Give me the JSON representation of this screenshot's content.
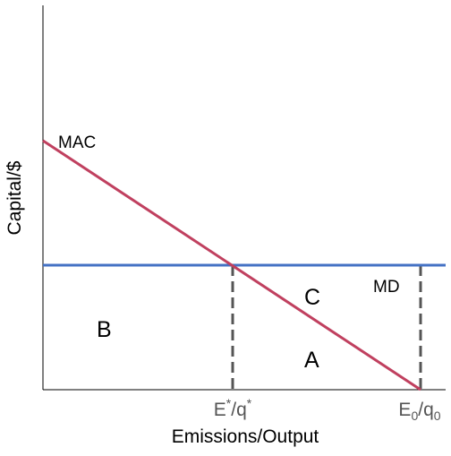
{
  "diagram": {
    "ylabel": "Capital/$",
    "xlabel": "Emissions/Output",
    "curves": {
      "mac": {
        "label": "MAC",
        "color": "#c0405f"
      },
      "md": {
        "label": "MD",
        "color": "#4472c4"
      }
    },
    "guide_color": "#555555",
    "regions": [
      "B",
      "C",
      "A"
    ],
    "ticks": {
      "e_star": {
        "main": "E",
        "sup": "*",
        "sep": "/",
        "second": "q",
        "sup2": "*"
      },
      "e_zero": {
        "main": "E",
        "sub": "0",
        "sep": "/",
        "second": "q",
        "sub2": "0"
      }
    }
  }
}
